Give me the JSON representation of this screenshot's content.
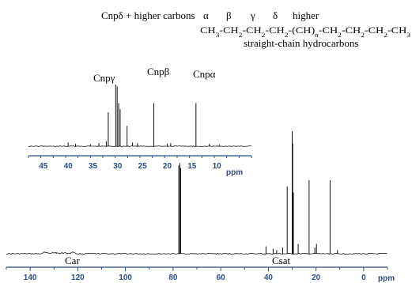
{
  "chart_data": [
    {
      "type": "line",
      "panel": "main",
      "xlabel": "ppm",
      "x_reversed": true,
      "xlim": [
        150,
        -10
      ],
      "xticks": [
        140,
        120,
        100,
        80,
        60,
        40,
        20,
        0
      ],
      "region_labels": [
        "Car",
        "Csat"
      ],
      "peaks": [
        {
          "x": 129.0,
          "h": 0.01
        },
        {
          "x": 77.6,
          "h": 0.72
        },
        {
          "x": 77.2,
          "h": 0.74
        },
        {
          "x": 76.8,
          "h": 0.7
        },
        {
          "x": 41.0,
          "h": 0.06
        },
        {
          "x": 38.0,
          "h": 0.04
        },
        {
          "x": 36.5,
          "h": 0.03
        },
        {
          "x": 34.0,
          "h": 0.05
        },
        {
          "x": 32.1,
          "h": 0.55
        },
        {
          "x": 30.0,
          "h": 1.0
        },
        {
          "x": 29.8,
          "h": 0.9
        },
        {
          "x": 29.5,
          "h": 0.5
        },
        {
          "x": 27.5,
          "h": 0.08
        },
        {
          "x": 22.9,
          "h": 0.6
        },
        {
          "x": 20.5,
          "h": 0.05
        },
        {
          "x": 19.8,
          "h": 0.08
        },
        {
          "x": 14.1,
          "h": 0.6
        },
        {
          "x": 11.0,
          "h": 0.03
        }
      ]
    },
    {
      "type": "line",
      "panel": "inset",
      "xlabel": "ppm",
      "x_reversed": true,
      "xlim": [
        48,
        3
      ],
      "xticks": [
        45,
        40,
        35,
        30,
        25,
        20,
        15,
        10
      ],
      "peaks": [
        {
          "x": 40.0,
          "h": 0.06
        },
        {
          "x": 38.5,
          "h": 0.04
        },
        {
          "x": 35.5,
          "h": 0.03
        },
        {
          "x": 33.8,
          "h": 0.05
        },
        {
          "x": 32.3,
          "h": 0.08
        },
        {
          "x": 31.9,
          "h": 0.55
        },
        {
          "x": 30.4,
          "h": 1.0
        },
        {
          "x": 30.1,
          "h": 0.97
        },
        {
          "x": 29.8,
          "h": 0.7
        },
        {
          "x": 29.5,
          "h": 0.6
        },
        {
          "x": 28.1,
          "h": 0.33
        },
        {
          "x": 27.0,
          "h": 0.06
        },
        {
          "x": 26.0,
          "h": 0.05
        },
        {
          "x": 22.7,
          "h": 0.7
        },
        {
          "x": 20.0,
          "h": 0.04
        },
        {
          "x": 19.3,
          "h": 0.05
        },
        {
          "x": 14.2,
          "h": 0.7
        },
        {
          "x": 11.5,
          "h": 0.04
        },
        {
          "x": 9.5,
          "h": 0.03
        }
      ],
      "peak_labels": [
        {
          "text": "Cnpδ + higher carbons",
          "x": 30.2
        },
        {
          "text": "Cnpγ",
          "x": 31.9
        },
        {
          "text": "Cnpβ",
          "x": 22.7
        },
        {
          "text": "Cnpα",
          "x": 14.2
        }
      ]
    }
  ],
  "annotation": {
    "greek_line": [
      "α",
      "β",
      "γ",
      "δ",
      "higher"
    ],
    "formula": "CH3-CH2-CH2-CH2-(CH)n-CH2-CH2-CH2-CH3",
    "caption": "straight-chain hydrocarbons"
  }
}
